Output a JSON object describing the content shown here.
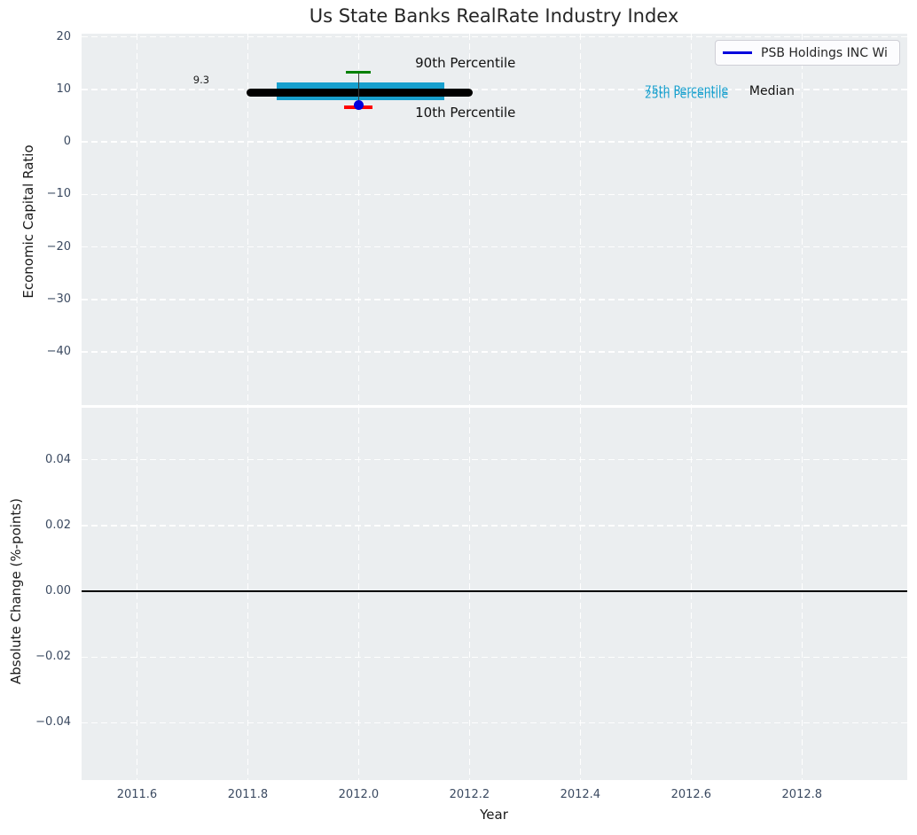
{
  "chart_data": [
    {
      "type": "box",
      "title": "Us State Banks RealRate Industry Index",
      "ylabel": "Economic Capital Ratio",
      "xlim": [
        2011.5,
        2012.99
      ],
      "ylim": [
        -50.1,
        20.6
      ],
      "grid": "white dashed",
      "legend": {
        "label": "PSB Holdings INC Wi",
        "line_color": "#0000dd",
        "location": "upper right"
      },
      "xticks": [
        2011.6,
        2011.8,
        2012.0,
        2012.2,
        2012.4,
        2012.6,
        2012.8
      ],
      "xtick_labels": [
        "2011.6",
        "2011.8",
        "2012.0",
        "2012.2",
        "2012.4",
        "2012.6",
        "2012.8"
      ],
      "yticks": [
        20,
        10,
        0,
        -10,
        -20,
        -30,
        -40
      ],
      "ytick_labels": [
        "20",
        "10",
        "0",
        "−10",
        "−20",
        "−30",
        "−40"
      ],
      "series": {
        "name": "PSB Holdings INC Wi",
        "x": 2012.0,
        "median": 9.3,
        "p90": 13.3,
        "p75": 11.3,
        "p25": 8.0,
        "p10": 6.6,
        "company_value": 7.1,
        "median_line_span": [
          2011.798,
          2012.206
        ],
        "box_span": [
          2011.852,
          2012.154
        ]
      },
      "colors": {
        "box": "#18a0ce",
        "median_line": "#000000",
        "p90_cap": "#008000",
        "p10_cap": "#ff0000",
        "company_dot": "#0000dd",
        "whisker": "#3c3c3c"
      },
      "annotations": [
        {
          "text": "9.3",
          "x": 2011.716,
          "y": 11.8,
          "ha": "center",
          "color": "#1c1c1c",
          "size": 11.5
        },
        {
          "text": "90th Percentile",
          "x": 2012.102,
          "y": 15.0,
          "ha": "left",
          "color": "#111111",
          "size": 15
        },
        {
          "text": "10th Percentile",
          "x": 2012.102,
          "y": 5.5,
          "ha": "left",
          "color": "#111111",
          "size": 15
        },
        {
          "text": "75th Percentile",
          "x": 2012.516,
          "y": 10.0,
          "ha": "left",
          "color": "#18a0ce",
          "size": 12.5
        },
        {
          "text": "25th Percentile",
          "x": 2012.516,
          "y": 9.2,
          "ha": "left",
          "color": "#18a0ce",
          "size": 12.5
        },
        {
          "text": "Median",
          "x": 2012.705,
          "y": 9.7,
          "ha": "left",
          "color": "#111111",
          "size": 14
        }
      ]
    },
    {
      "type": "line",
      "ylabel": "Absolute Change (%-points)",
      "xlabel": "Year",
      "xlim": [
        2011.5,
        2012.99
      ],
      "ylim": [
        -0.0574,
        0.0558
      ],
      "grid": "white dashed",
      "xticks": [
        2011.6,
        2011.8,
        2012.0,
        2012.2,
        2012.4,
        2012.6,
        2012.8
      ],
      "xtick_labels": [
        "2011.6",
        "2011.8",
        "2012.0",
        "2012.2",
        "2012.4",
        "2012.6",
        "2012.8"
      ],
      "yticks": [
        0.04,
        0.02,
        0.0,
        -0.02,
        -0.04
      ],
      "ytick_labels": [
        "0.04",
        "0.02",
        "0.00",
        "−0.02",
        "−0.04"
      ],
      "zero_line_y": 0.0,
      "series": []
    }
  ]
}
